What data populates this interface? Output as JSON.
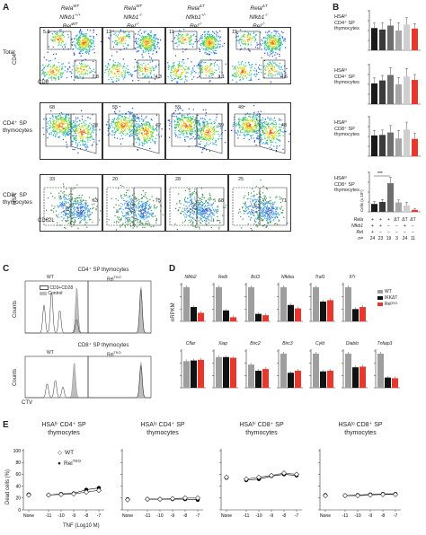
{
  "panelA": {
    "letter": "A",
    "genotypes": [
      {
        "lines": [
          "Rela",
          "Nfkb1",
          "Rel"
        ],
        "sups": [
          "WT",
          "+/+",
          "WT"
        ]
      },
      {
        "lines": [
          "Rela",
          "Nfkb1",
          "Rel"
        ],
        "sups": [
          "WT",
          "-/-",
          "-/-"
        ]
      },
      {
        "lines": [
          "Rela",
          "Nfkb1",
          "Rel"
        ],
        "sups": [
          "ΔT",
          "+/-",
          "-/-"
        ]
      },
      {
        "lines": [
          "Rela",
          "Nfkb1",
          "Rel"
        ],
        "sups": [
          "ΔT",
          "-/-",
          "-/-"
        ]
      }
    ],
    "rows": [
      {
        "label": "Total",
        "counts": [
          [
            "5.5",
            "2.8"
          ],
          [
            "13",
            "4.3"
          ],
          [
            "11",
            "3.1"
          ],
          [
            "15",
            "4.6"
          ]
        ]
      },
      {
        "label": "CD4⁺ SP\nthymocytes",
        "counts": [
          [
            "68",
            "28"
          ],
          [
            "55",
            "42"
          ],
          [
            "59",
            "39"
          ],
          [
            "49",
            "48"
          ]
        ]
      },
      {
        "label": "CD8⁺ SP\nthymocytes",
        "counts": [
          [
            "33",
            "63"
          ],
          [
            "20",
            "75"
          ],
          [
            "28",
            "68"
          ],
          [
            "25",
            "71"
          ]
        ]
      }
    ],
    "axis": {
      "y1": "CD4",
      "x1": "CD8",
      "y3": "HSA",
      "x3": "CD62L"
    }
  },
  "panelB": {
    "letter": "B",
    "charts": [
      {
        "label": "HSAʰⁱ\nCD4⁺ SP\nthymocytes",
        "values": [
          4.5,
          4.2,
          5.0,
          4.0,
          5.2,
          4.4
        ],
        "err": [
          1.0,
          1.4,
          1.2,
          1.6,
          1.4,
          1.0
        ]
      },
      {
        "label": "HSAˡᵒ\nCD4⁺ SP\nthymocytes",
        "values": [
          4.2,
          4.8,
          5.9,
          4.0,
          5.6,
          4.9
        ],
        "err": [
          1.1,
          1.0,
          1.5,
          1.4,
          1.6,
          1.1
        ]
      },
      {
        "label": "HSAʰⁱ\nCD8⁺ SP\nthymocytes",
        "values": [
          4.2,
          4.3,
          4.8,
          3.6,
          5.4,
          3.5
        ],
        "err": [
          1.0,
          1.0,
          1.4,
          1.6,
          1.5,
          1.2
        ]
      },
      {
        "label": "HSAˡᵒ\nCD8⁺ SP\nthymocytes",
        "values": [
          1.6,
          2.0,
          5.8,
          1.9,
          1.3,
          0.4
        ],
        "err": [
          0.5,
          0.5,
          1.2,
          0.5,
          0.6,
          0.3
        ]
      }
    ],
    "yaxis_label": "Cells (x 10⁵)",
    "significance": "***",
    "table_rows": [
      {
        "name": "Rela",
        "cells": [
          "+",
          "+",
          "+",
          "ΔT",
          "ΔT",
          "ΔT"
        ]
      },
      {
        "name": "Nfkb1",
        "cells": [
          "+",
          "+",
          "−",
          "−",
          "+",
          "−"
        ]
      },
      {
        "name": "Rel",
        "cells": [
          "+",
          "−",
          "−",
          "−",
          "−",
          "−"
        ]
      },
      {
        "name": "n=",
        "cells": [
          "24",
          "23",
          "19",
          "3",
          "24",
          "11"
        ]
      }
    ],
    "colors": [
      "#1a1a1a",
      "#3a3a3a",
      "#6e6e6e",
      "#a6a6a6",
      "#cfcfcf",
      "#e8372c"
    ]
  },
  "panelC": {
    "letter": "C",
    "top_title": "CD4⁺ SP thymocytes",
    "bottom_title": "CD8⁺ SP thymocytes",
    "wt": "WT",
    "rel": "Rel",
    "rel_sup": "TKO",
    "legend": [
      "CD3+CD28",
      "Control"
    ],
    "ylabel": "Counts",
    "xlabel": "CTV"
  },
  "panelD": {
    "letter": "D",
    "ylabel": "nRPKM",
    "row1": [
      {
        "gene": "Nfkb2",
        "v": [
          1.0,
          0.42,
          0.25
        ]
      },
      {
        "gene": "Relb",
        "v": [
          1.0,
          0.32,
          0.12
        ]
      },
      {
        "gene": "Bcl3",
        "v": [
          1.0,
          0.22,
          0.18
        ]
      },
      {
        "gene": "Nfkbia",
        "v": [
          1.0,
          0.48,
          0.38
        ]
      },
      {
        "gene": "Traf1",
        "v": [
          1.0,
          0.58,
          0.62
        ]
      },
      {
        "gene": "Il7r",
        "v": [
          1.0,
          0.36,
          0.42
        ]
      }
    ],
    "row2": [
      {
        "gene": "Cflar",
        "v": [
          0.78,
          0.8,
          0.82
        ]
      },
      {
        "gene": "Xiap",
        "v": [
          0.9,
          0.9,
          0.88
        ]
      },
      {
        "gene": "Birc2",
        "v": [
          0.68,
          0.5,
          0.55
        ]
      },
      {
        "gene": "Birc3",
        "v": [
          1.0,
          0.44,
          0.5
        ]
      },
      {
        "gene": "Cyld",
        "v": [
          1.0,
          0.48,
          0.5
        ]
      },
      {
        "gene": "Diablo",
        "v": [
          1.0,
          0.6,
          0.62
        ]
      },
      {
        "gene": "Tnfaip3",
        "v": [
          1.0,
          0.3,
          0.28
        ]
      }
    ],
    "legend": [
      {
        "name": "WT",
        "color": "#9e9e9e"
      },
      {
        "name": "IKKΔT",
        "color": "#111111"
      },
      {
        "name": "Relᵀᴷᴼ",
        "color": "#e8372c"
      }
    ]
  },
  "panelE": {
    "letter": "E",
    "ylabel": "Dead cells (%)",
    "xlabel": "TNF (Log10 M)",
    "xticks": [
      "None",
      "-11",
      "-10",
      "-9",
      "-8",
      "-7"
    ],
    "yticks": [
      "0",
      "20",
      "40",
      "60",
      "80",
      "100"
    ],
    "legend": [
      {
        "name": "WT",
        "marker": "open-diamond"
      },
      {
        "name": "Rel",
        "sup": "TKO",
        "marker": "filled-circle"
      }
    ],
    "charts": [
      {
        "title": [
          "HSAʰⁱ CD4⁺ SP",
          "thymocytes"
        ],
        "wt": [
          25,
          25,
          26,
          27,
          30,
          33
        ],
        "tko": [
          26,
          25,
          27,
          28,
          34,
          37
        ]
      },
      {
        "title": [
          "HSAˡᵒ CD4⁺ SP",
          "thymocytes"
        ],
        "wt": [
          17,
          18,
          18,
          19,
          20,
          20
        ],
        "tko": [
          18,
          18,
          18,
          18,
          18,
          17
        ]
      },
      {
        "title": [
          "HSAʰⁱ CD8⁺ SP",
          "thymocytes"
        ],
        "wt": [
          55,
          52,
          55,
          58,
          62,
          60
        ],
        "tko": [
          54,
          50,
          52,
          57,
          60,
          58
        ]
      },
      {
        "title": [
          "HSAˡᵒ CD8⁺ SP",
          "thymocytes"
        ],
        "wt": [
          24,
          24,
          24,
          25,
          26,
          26
        ],
        "tko": [
          25,
          24,
          25,
          26,
          27,
          27
        ]
      }
    ]
  }
}
